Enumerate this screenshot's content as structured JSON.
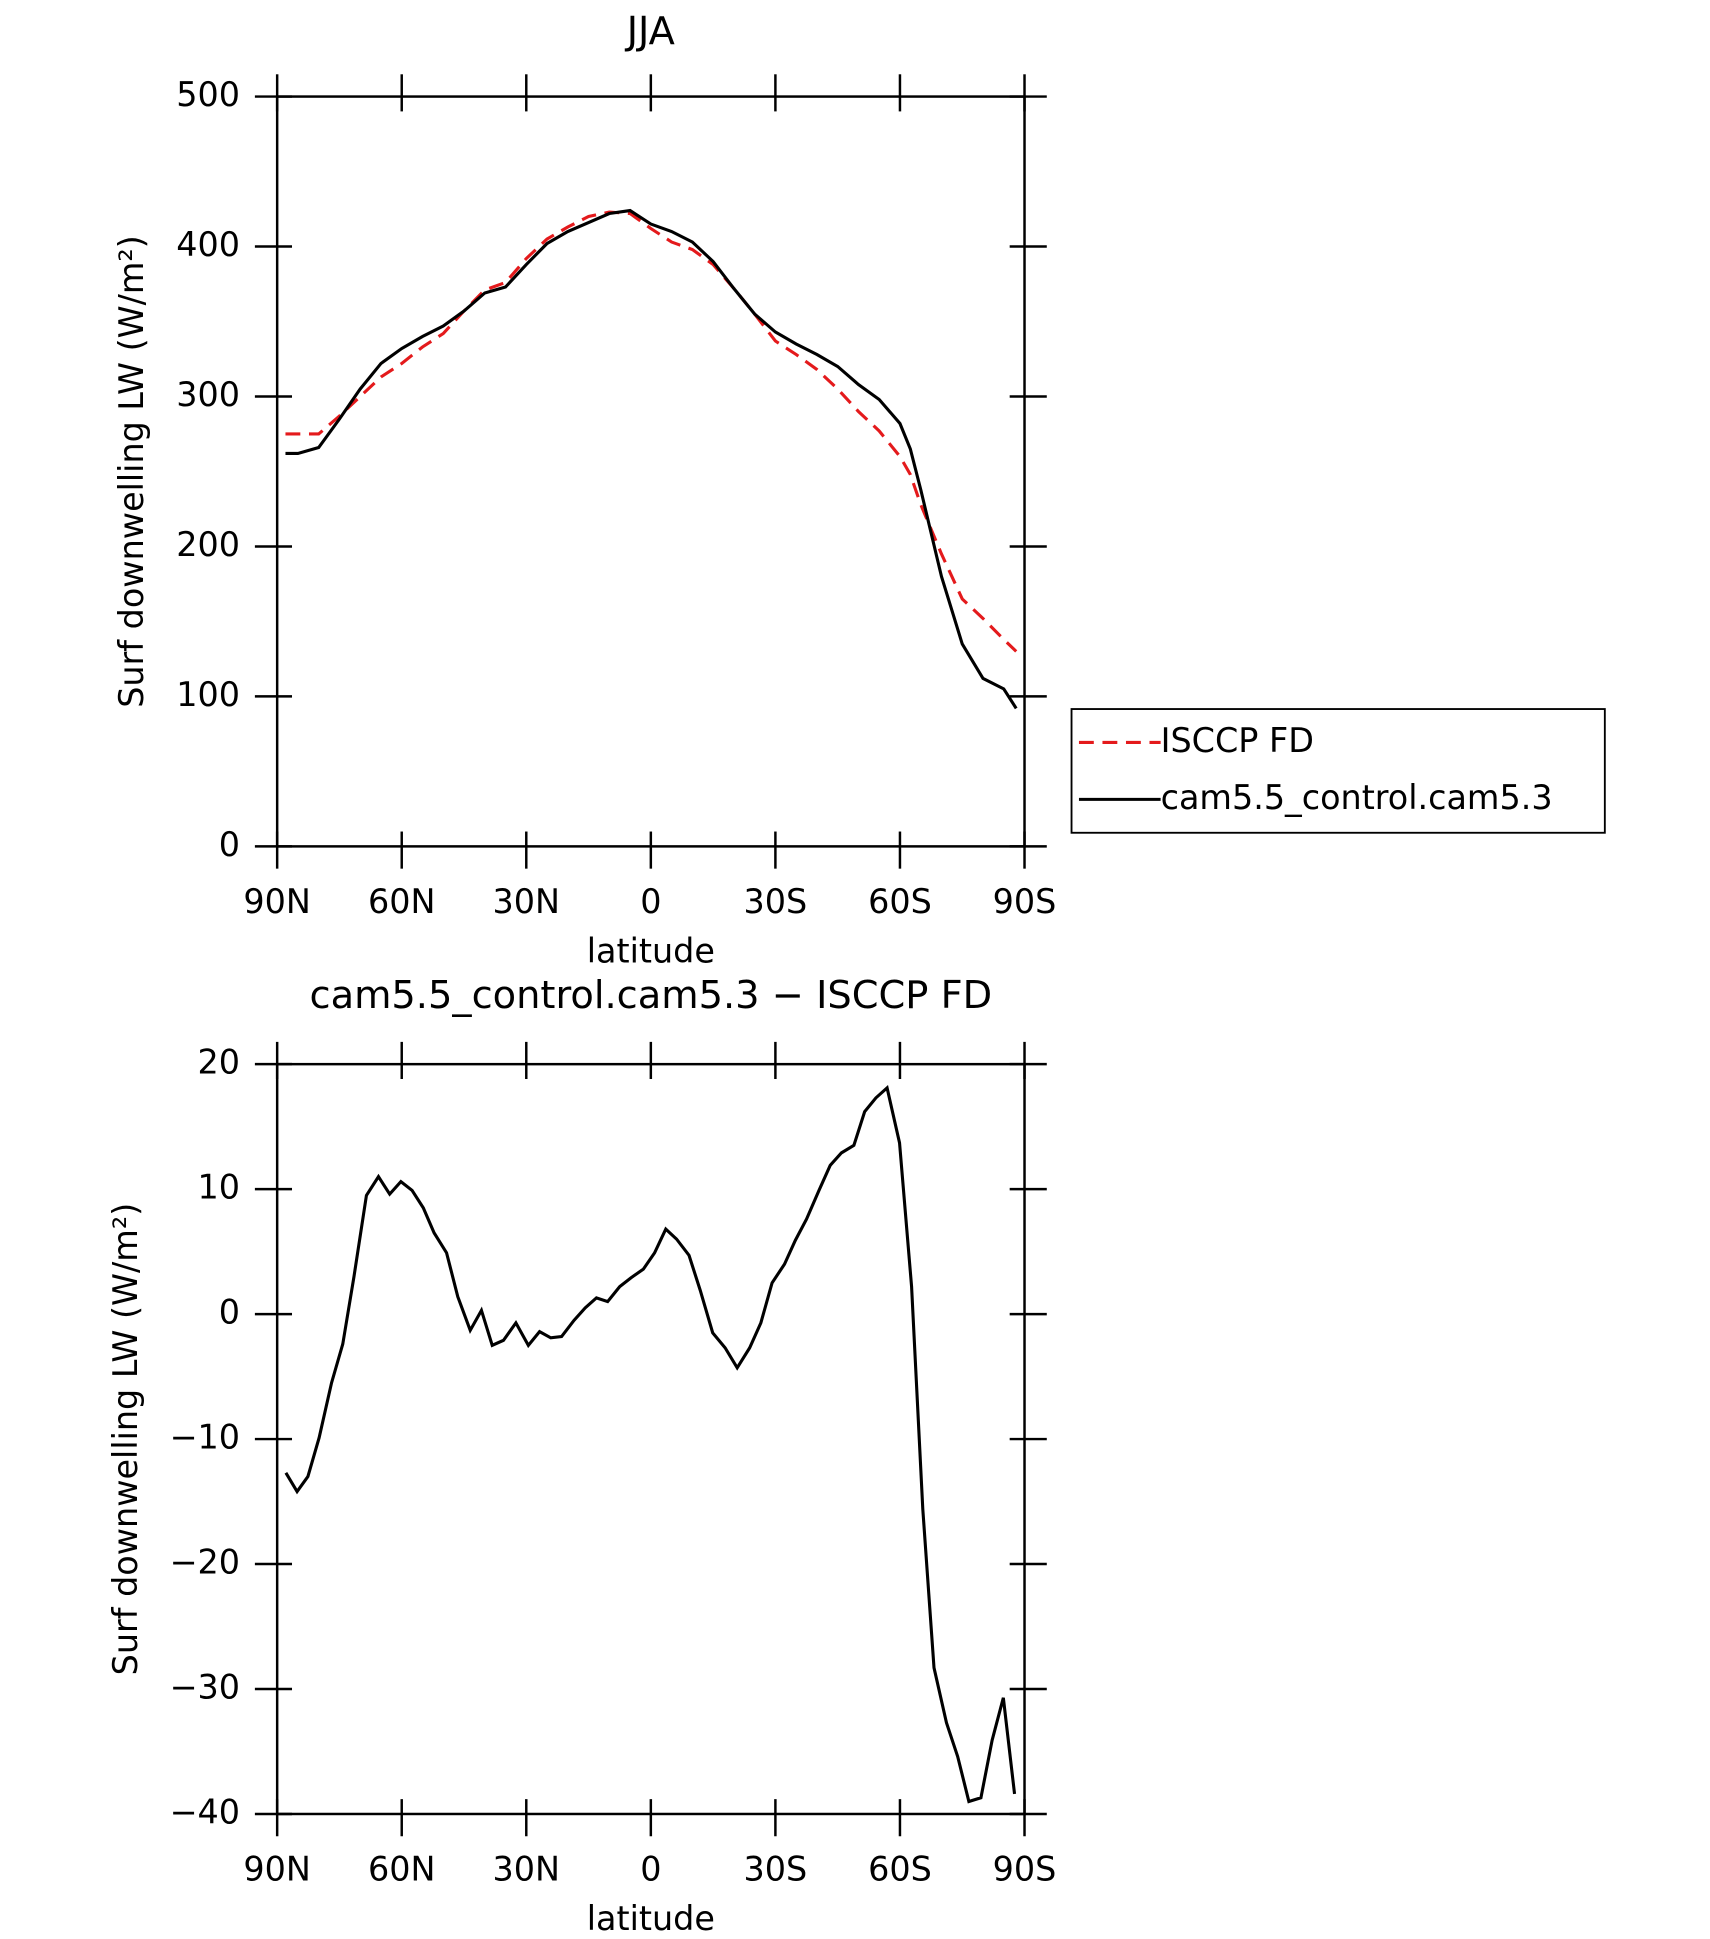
{
  "chart_data": [
    {
      "type": "line",
      "title": "JJA",
      "x_label": "latitude",
      "y_label": "Surf downwelling LW (W/m²)",
      "x": [
        88,
        85,
        80,
        75,
        70,
        65,
        60,
        55,
        50,
        45,
        40,
        35,
        30,
        25,
        20,
        15,
        10,
        5,
        0,
        -5,
        -10,
        -15,
        -20,
        -25,
        -30,
        -35,
        -40,
        -45,
        -50,
        -55,
        -60,
        -62.5,
        -65,
        -70,
        -75,
        -80,
        -85,
        -88
      ],
      "series": [
        {
          "name": "ISCCP FD",
          "color": "#e41a1c",
          "dash": true,
          "values": [
            275,
            275,
            275,
            287,
            300,
            313,
            322,
            333,
            342,
            357,
            371,
            376,
            392,
            405,
            413,
            420,
            423,
            422,
            412,
            403,
            398,
            388,
            372,
            355,
            337,
            328,
            318,
            305,
            290,
            277,
            260,
            248,
            228,
            195,
            165,
            152,
            138,
            130
          ]
        },
        {
          "name": "cam5.5_control.cam5.3",
          "color": "#000000",
          "dash": false,
          "values": [
            262,
            262,
            266,
            285,
            305,
            322,
            332,
            340,
            347,
            357,
            369,
            373,
            388,
            402,
            410,
            416,
            422,
            424,
            415,
            410,
            403,
            390,
            372,
            355,
            343,
            335,
            328,
            320,
            308,
            298,
            282,
            265,
            238,
            180,
            135,
            112,
            105,
            92
          ]
        }
      ],
      "xlim": [
        90,
        -90
      ],
      "xticks": [
        {
          "value": 90,
          "label": "90N"
        },
        {
          "value": 60,
          "label": "60N"
        },
        {
          "value": 30,
          "label": "30N"
        },
        0,
        {
          "value": -30,
          "label": "30S"
        },
        {
          "value": -60,
          "label": "60S"
        },
        {
          "value": -90,
          "label": "90S"
        }
      ],
      "ylim": [
        0,
        500
      ],
      "yticks": [
        0,
        100,
        200,
        300,
        400,
        500
      ],
      "legend": "right"
    },
    {
      "type": "line",
      "title": "cam5.5_control.cam5.3 − ISCCP FD",
      "x_label": "latitude",
      "y_label": "Surf downwelling LW (W/m²)",
      "x": [
        87.9,
        85.2,
        82.6,
        79.9,
        76.9,
        74.2,
        71.5,
        68.5,
        65.6,
        62.9,
        60.2,
        57.5,
        54.8,
        52.2,
        49.2,
        46.5,
        43.5,
        40.8,
        38.2,
        35.5,
        32.5,
        29.5,
        26.8,
        24.1,
        21.5,
        18.5,
        15.8,
        13.1,
        10.4,
        7.5,
        4.8,
        1.8,
        -0.9,
        -3.6,
        -6.2,
        -9.2,
        -11.9,
        -14.9,
        -17.9,
        -20.8,
        -23.8,
        -26.5,
        -29.2,
        -32.2,
        -34.8,
        -37.5,
        -40.5,
        -43.2,
        -45.9,
        -48.9,
        -51.5,
        -54.2,
        -56.9,
        -59.9,
        -62.8,
        -65.5,
        -68.2,
        -71.2,
        -73.9,
        -76.6,
        -79.5,
        -82.2,
        -84.9,
        -87.6
      ],
      "series": [
        {
          "color": "#000000",
          "dash": false,
          "values": [
            -12.7,
            -14.2,
            -13,
            -9.9,
            -5.5,
            -2.4,
            3,
            9.5,
            11,
            9.6,
            10.6,
            9.9,
            8.5,
            6.5,
            4.9,
            1.4,
            -1.3,
            0.3,
            -2.5,
            -2.1,
            -0.7,
            -2.5,
            -1.4,
            -1.9,
            -1.8,
            -0.5,
            0.5,
            1.3,
            1,
            2.2,
            2.9,
            3.6,
            4.9,
            6.8,
            6,
            4.7,
            1.9,
            -1.5,
            -2.7,
            -4.3,
            -2.7,
            -0.7,
            2.5,
            4,
            5.9,
            7.6,
            9.9,
            11.9,
            12.9,
            13.5,
            16.2,
            17.3,
            18.1,
            13.7,
            2.2,
            -15.6,
            -28.3,
            -32.7,
            -35.4,
            -39,
            -38.7,
            -34.1,
            -30.7,
            -38.4
          ]
        }
      ],
      "xlim": [
        90,
        -90
      ],
      "xticks": [
        {
          "value": 90,
          "label": "90N"
        },
        {
          "value": 60,
          "label": "60N"
        },
        {
          "value": 30,
          "label": "30N"
        },
        0,
        {
          "value": -30,
          "label": "30S"
        },
        {
          "value": -60,
          "label": "60S"
        },
        {
          "value": -90,
          "label": "90S"
        }
      ],
      "ylim": [
        -40,
        20
      ],
      "yticks": [
        {
          "value": -40,
          "label": "−40"
        },
        {
          "value": -30,
          "label": "−30"
        },
        {
          "value": -20,
          "label": "−20"
        },
        {
          "value": -10,
          "label": "−10"
        },
        0,
        10,
        20
      ]
    }
  ]
}
